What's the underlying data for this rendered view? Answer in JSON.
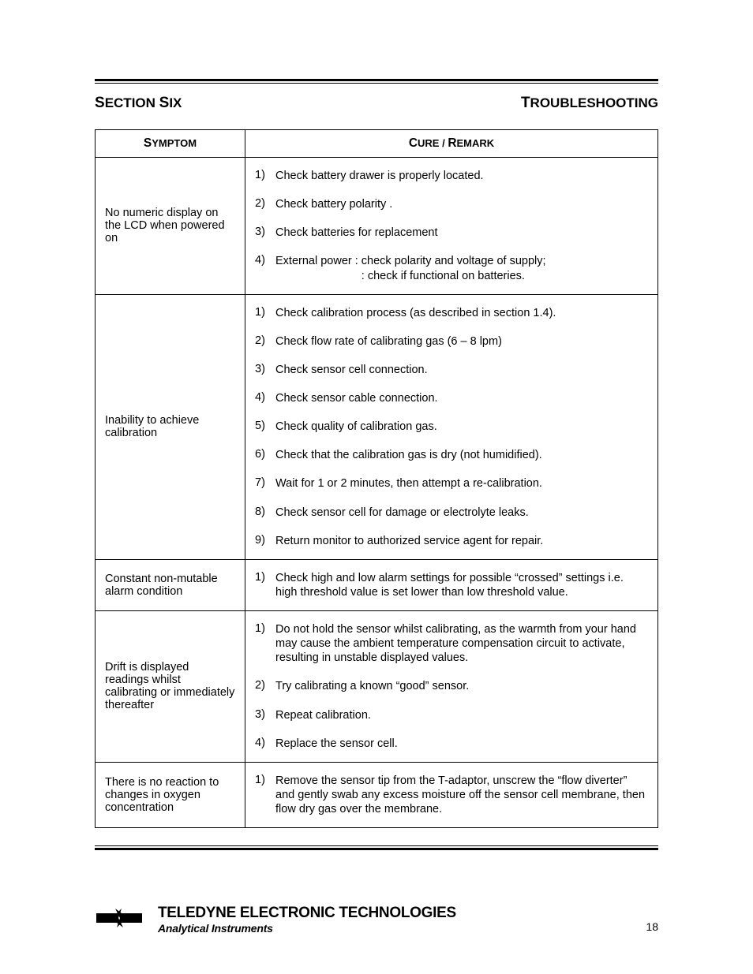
{
  "header": {
    "left": "Section Six",
    "right": "Troubleshooting"
  },
  "table": {
    "columns": [
      "Symptom",
      "Cure / Remark"
    ],
    "rows": [
      {
        "symptom": "No numeric display on the LCD when powered on",
        "cures": [
          "Check battery drawer is properly located.",
          "Check battery polarity .",
          "Check batteries for replacement",
          "External power : check polarity and voltage of supply;\n                           : check if functional on batteries."
        ]
      },
      {
        "symptom": "Inability to achieve calibration",
        "cures": [
          "Check calibration process (as described in section 1.4).",
          "Check flow rate of calibrating gas (6 – 8 lpm)",
          "Check sensor cell connection.",
          "Check sensor cable connection.",
          "Check quality of calibration gas.",
          "Check that the calibration gas is dry (not humidified).",
          "Wait for 1 or 2 minutes, then attempt a re-calibration.",
          "Check sensor cell for damage or electrolyte leaks.",
          "Return monitor to authorized service agent for repair."
        ]
      },
      {
        "symptom": "Constant non-mutable alarm condition",
        "cures": [
          "Check high and low alarm settings for possible “crossed” settings i.e. high threshold value is set lower than low threshold value."
        ]
      },
      {
        "symptom": "Drift is displayed readings whilst calibrating or immediately thereafter",
        "cures": [
          "Do not hold the sensor whilst calibrating, as the warmth from your hand may cause the ambient temperature compensation circuit to activate, resulting in unstable displayed values.",
          "Try calibrating a known “good” sensor.",
          "Repeat calibration.",
          "Replace the sensor cell."
        ]
      },
      {
        "symptom": "There is no reaction to changes in oxygen concentration",
        "cures": [
          "Remove the sensor tip from the T-adaptor, unscrew the “flow diverter” and gently swab any excess moisture off the sensor cell membrane, then flow dry gas over the membrane."
        ]
      }
    ]
  },
  "footer": {
    "company": "TELEDYNE ELECTRONIC TECHNOLOGIES",
    "sub": "Analytical Instruments",
    "page": "18"
  }
}
